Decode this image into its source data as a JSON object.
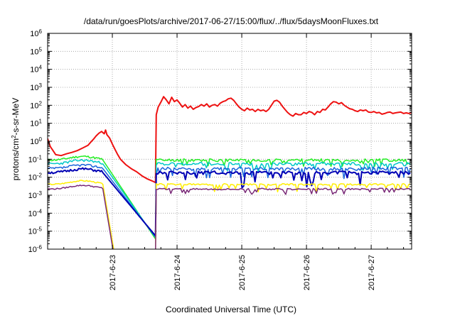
{
  "chart_data": {
    "type": "line",
    "title": "/data/run/goesPlots/archive/2017-06-27/15:00/flux/../flux/5daysMoonFluxes.txt",
    "xlabel": "Coordinated Universal Time (UTC)",
    "ylabel": "protons/cm²-s-sr-MeV",
    "y_scale": "log",
    "ylim": [
      1e-06,
      1000000.0
    ],
    "y_ticks": [
      {
        "mant": "10",
        "exp": "-6"
      },
      {
        "mant": "10",
        "exp": "-5"
      },
      {
        "mant": "10",
        "exp": "-4"
      },
      {
        "mant": "10",
        "exp": "-3"
      },
      {
        "mant": "10",
        "exp": "-2"
      },
      {
        "mant": "10",
        "exp": "-1"
      },
      {
        "mant": "10",
        "exp": "0"
      },
      {
        "mant": "10",
        "exp": "1"
      },
      {
        "mant": "10",
        "exp": "2"
      },
      {
        "mant": "10",
        "exp": "3"
      },
      {
        "mant": "10",
        "exp": "4"
      },
      {
        "mant": "10",
        "exp": "5"
      },
      {
        "mant": "10",
        "exp": "6"
      }
    ],
    "xlim": [
      "2017-06-22T00:00",
      "2017-06-27T15:00"
    ],
    "x_ticks": [
      "2017-6-23",
      "2017-6-24",
      "2017-6-25",
      "2017-6-26",
      "2017-6-27"
    ],
    "grid": true,
    "x_scale_hours": 135,
    "series": [
      {
        "color": "#ee1111",
        "width": 2,
        "points": [
          [
            0,
            1.4
          ],
          [
            1,
            0.5
          ],
          [
            2,
            0.3
          ],
          [
            3,
            0.18
          ],
          [
            5,
            0.16
          ],
          [
            7,
            0.2
          ],
          [
            9,
            0.24
          ],
          [
            11,
            0.3
          ],
          [
            13,
            0.42
          ],
          [
            15,
            0.6
          ],
          [
            16,
            0.9
          ],
          [
            17,
            1.3
          ],
          [
            18,
            2.0
          ],
          [
            19,
            2.8
          ],
          [
            20,
            3.5
          ],
          [
            21,
            2.6
          ],
          [
            21.5,
            4.2
          ],
          [
            22,
            2.3
          ],
          [
            23,
            1.5
          ],
          [
            24,
            0.7
          ],
          [
            25,
            0.35
          ],
          [
            26,
            0.18
          ],
          [
            27,
            0.1
          ],
          [
            29,
            0.05
          ],
          [
            31,
            0.03
          ],
          [
            33,
            0.02
          ],
          [
            35,
            0.012
          ],
          [
            37,
            0.008
          ],
          [
            39,
            0.006
          ],
          [
            40,
            0.005
          ],
          [
            40.3,
            30
          ],
          [
            41,
            80
          ],
          [
            42,
            150
          ],
          [
            43,
            300
          ],
          [
            44,
            200
          ],
          [
            45,
            120
          ],
          [
            46,
            280
          ],
          [
            47,
            160
          ],
          [
            48,
            200
          ],
          [
            49,
            130
          ],
          [
            50,
            80
          ],
          [
            51,
            110
          ],
          [
            52,
            70
          ],
          [
            53,
            90
          ],
          [
            54,
            60
          ],
          [
            55,
            75
          ],
          [
            56,
            85
          ],
          [
            57,
            110
          ],
          [
            58,
            90
          ],
          [
            59,
            120
          ],
          [
            60,
            80
          ],
          [
            61,
            100
          ],
          [
            62,
            110
          ],
          [
            63,
            90
          ],
          [
            64,
            130
          ],
          [
            65,
            160
          ],
          [
            66,
            180
          ],
          [
            67,
            230
          ],
          [
            68,
            250
          ],
          [
            69,
            190
          ],
          [
            70,
            120
          ],
          [
            71,
            80
          ],
          [
            72,
            60
          ],
          [
            73,
            50
          ],
          [
            74,
            70
          ],
          [
            75,
            55
          ],
          [
            76,
            60
          ],
          [
            77,
            45
          ],
          [
            78,
            60
          ],
          [
            79,
            50
          ],
          [
            80,
            55
          ],
          [
            81,
            45
          ],
          [
            82,
            60
          ],
          [
            83,
            100
          ],
          [
            84,
            170
          ],
          [
            85,
            190
          ],
          [
            86,
            150
          ],
          [
            87,
            90
          ],
          [
            88,
            60
          ],
          [
            89,
            40
          ],
          [
            90,
            30
          ],
          [
            91,
            25
          ],
          [
            92,
            35
          ],
          [
            93,
            30
          ],
          [
            94,
            30
          ],
          [
            95,
            40
          ],
          [
            96,
            35
          ],
          [
            97,
            45
          ],
          [
            98,
            40
          ],
          [
            99,
            30
          ],
          [
            100,
            45
          ],
          [
            101,
            40
          ],
          [
            102,
            60
          ],
          [
            103,
            55
          ],
          [
            104,
            80
          ],
          [
            105,
            120
          ],
          [
            106,
            160
          ],
          [
            107,
            150
          ],
          [
            108,
            120
          ],
          [
            109,
            140
          ],
          [
            110,
            100
          ],
          [
            111,
            80
          ],
          [
            112,
            65
          ],
          [
            113,
            60
          ],
          [
            114,
            50
          ],
          [
            115,
            45
          ],
          [
            116,
            55
          ],
          [
            117,
            50
          ],
          [
            118,
            55
          ],
          [
            119,
            42
          ],
          [
            120,
            40
          ],
          [
            121,
            45
          ],
          [
            122,
            38
          ],
          [
            123,
            40
          ],
          [
            124,
            32
          ],
          [
            125,
            35
          ],
          [
            126,
            40
          ],
          [
            127,
            42
          ],
          [
            128,
            35
          ],
          [
            129,
            38
          ],
          [
            130,
            40
          ],
          [
            131,
            42
          ],
          [
            132,
            35
          ],
          [
            133,
            38
          ],
          [
            134,
            35
          ],
          [
            135,
            40
          ]
        ]
      },
      {
        "color": "#22ee22",
        "width": 1.5,
        "base": 0.09,
        "amp": 0.25,
        "seed": 11,
        "dip": 0.04
      },
      {
        "color": "#00c8c8",
        "width": 1.5,
        "base": 0.055,
        "amp": 0.3,
        "seed": 23,
        "dip": 0.02
      },
      {
        "color": "#1a64dc",
        "width": 1.5,
        "base": 0.03,
        "amp": 0.3,
        "seed": 37,
        "dip": 0.008
      },
      {
        "color": "#0000b4",
        "width": 2,
        "base": 0.018,
        "amp": 0.3,
        "seed": 51,
        "dip": 0.0025
      },
      {
        "color": "#ffee00",
        "width": 1.5,
        "base": 0.004,
        "amp": 0.15,
        "seed": 67,
        "dip": 0.0015
      },
      {
        "color": "#7a2a78",
        "width": 1.5,
        "base": 0.0022,
        "amp": 0.15,
        "seed": 79,
        "dip": 0.001
      }
    ]
  }
}
